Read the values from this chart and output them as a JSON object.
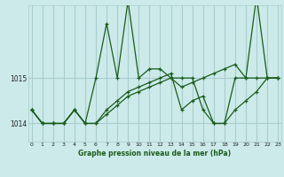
{
  "xlabel": "Graphe pression niveau de la mer (hPa)",
  "background_color": "#cceaea",
  "grid_color": "#aacccc",
  "line_color": "#1a5c1a",
  "x_ticks": [
    0,
    1,
    2,
    3,
    4,
    5,
    6,
    7,
    8,
    9,
    10,
    11,
    12,
    13,
    14,
    15,
    16,
    17,
    18,
    19,
    20,
    21,
    22,
    23
  ],
  "y_ticks": [
    1014,
    1015
  ],
  "ylim": [
    1013.6,
    1016.6
  ],
  "xlim": [
    -0.3,
    23.3
  ],
  "series": [
    [
      1014.3,
      1014.0,
      1014.0,
      1014.0,
      1014.3,
      1014.0,
      1015.0,
      1016.2,
      1015.0,
      1016.7,
      1015.0,
      1015.2,
      1015.2,
      1015.0,
      1015.0,
      1015.0,
      1014.3,
      1014.0,
      1014.0,
      1015.0,
      1015.0,
      1016.8,
      1015.0,
      1015.0
    ],
    [
      1014.3,
      1014.0,
      1014.0,
      1014.0,
      1014.3,
      1014.0,
      1014.0,
      1014.3,
      1014.5,
      1014.7,
      1014.8,
      1014.9,
      1015.0,
      1015.1,
      1014.3,
      1014.5,
      1014.6,
      1014.0,
      1014.0,
      1014.3,
      1014.5,
      1014.7,
      1015.0,
      1015.0
    ],
    [
      1014.3,
      1014.0,
      1014.0,
      1014.0,
      1014.3,
      1014.0,
      1014.0,
      1014.2,
      1014.4,
      1014.6,
      1014.7,
      1014.8,
      1014.9,
      1015.0,
      1014.8,
      1014.9,
      1015.0,
      1015.1,
      1015.2,
      1015.3,
      1015.0,
      1015.0,
      1015.0,
      1015.0
    ]
  ]
}
